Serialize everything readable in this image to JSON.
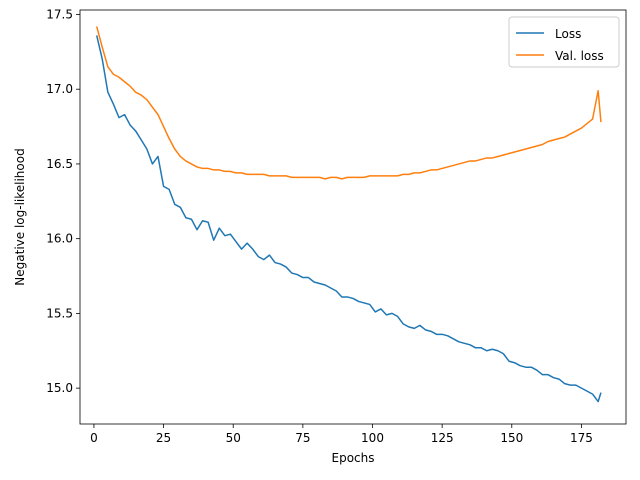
{
  "chart_data": {
    "type": "line",
    "xlabel": "Epochs",
    "ylabel": "Negative log-likelihood",
    "xlim": [
      -5,
      191
    ],
    "ylim": [
      14.76,
      17.53
    ],
    "x_ticks": [
      0,
      25,
      50,
      75,
      100,
      125,
      150,
      175
    ],
    "y_ticks": [
      15.0,
      15.5,
      16.0,
      16.5,
      17.0,
      17.5
    ],
    "x_tick_labels": [
      "0",
      "25",
      "50",
      "75",
      "100",
      "125",
      "150",
      "175"
    ],
    "y_tick_labels": [
      "15.0",
      "15.5",
      "16.0",
      "16.5",
      "17.0",
      "17.5"
    ],
    "grid": false,
    "legend": "top-right",
    "series": [
      {
        "name": "Loss",
        "color": "#1f77b4",
        "x": [
          1,
          3,
          5,
          7,
          9,
          11,
          13,
          15,
          17,
          19,
          21,
          23,
          25,
          27,
          29,
          31,
          33,
          35,
          37,
          39,
          41,
          43,
          45,
          47,
          49,
          51,
          53,
          55,
          57,
          59,
          61,
          63,
          65,
          67,
          69,
          71,
          73,
          75,
          77,
          79,
          81,
          83,
          85,
          87,
          89,
          91,
          93,
          95,
          97,
          99,
          101,
          103,
          105,
          107,
          109,
          111,
          113,
          115,
          117,
          119,
          121,
          123,
          125,
          127,
          129,
          131,
          133,
          135,
          137,
          139,
          141,
          143,
          145,
          147,
          149,
          151,
          153,
          155,
          157,
          159,
          161,
          163,
          165,
          167,
          169,
          171,
          173,
          175,
          177,
          179,
          181,
          182
        ],
        "values": [
          17.36,
          17.2,
          16.98,
          16.9,
          16.81,
          16.83,
          16.76,
          16.72,
          16.66,
          16.6,
          16.5,
          16.55,
          16.35,
          16.33,
          16.23,
          16.21,
          16.14,
          16.13,
          16.06,
          16.12,
          16.11,
          15.99,
          16.07,
          16.02,
          16.03,
          15.98,
          15.93,
          15.97,
          15.93,
          15.88,
          15.86,
          15.89,
          15.84,
          15.83,
          15.81,
          15.77,
          15.76,
          15.74,
          15.74,
          15.71,
          15.7,
          15.69,
          15.67,
          15.65,
          15.61,
          15.61,
          15.6,
          15.58,
          15.57,
          15.56,
          15.51,
          15.53,
          15.49,
          15.5,
          15.48,
          15.43,
          15.41,
          15.4,
          15.42,
          15.39,
          15.38,
          15.36,
          15.36,
          15.35,
          15.33,
          15.31,
          15.3,
          15.29,
          15.27,
          15.27,
          15.25,
          15.26,
          15.25,
          15.23,
          15.18,
          15.17,
          15.15,
          15.14,
          15.14,
          15.12,
          15.09,
          15.09,
          15.07,
          15.06,
          15.03,
          15.02,
          15.02,
          15.0,
          14.98,
          14.96,
          14.91,
          14.97
        ]
      },
      {
        "name": "Val. loss",
        "color": "#ff7f0e",
        "x": [
          1,
          3,
          5,
          7,
          9,
          11,
          13,
          15,
          17,
          19,
          21,
          23,
          25,
          27,
          29,
          31,
          33,
          35,
          37,
          39,
          41,
          43,
          45,
          47,
          49,
          51,
          53,
          55,
          57,
          59,
          61,
          63,
          65,
          67,
          69,
          71,
          73,
          75,
          77,
          79,
          81,
          83,
          85,
          87,
          89,
          91,
          93,
          95,
          97,
          99,
          101,
          103,
          105,
          107,
          109,
          111,
          113,
          115,
          117,
          119,
          121,
          123,
          125,
          127,
          129,
          131,
          133,
          135,
          137,
          139,
          141,
          143,
          145,
          147,
          149,
          151,
          153,
          155,
          157,
          159,
          161,
          163,
          165,
          167,
          169,
          171,
          173,
          175,
          177,
          179,
          181,
          182
        ],
        "values": [
          17.42,
          17.28,
          17.15,
          17.1,
          17.08,
          17.05,
          17.02,
          16.98,
          16.96,
          16.93,
          16.88,
          16.83,
          16.75,
          16.67,
          16.6,
          16.55,
          16.52,
          16.5,
          16.48,
          16.47,
          16.47,
          16.46,
          16.46,
          16.45,
          16.45,
          16.44,
          16.44,
          16.43,
          16.43,
          16.43,
          16.43,
          16.42,
          16.42,
          16.42,
          16.42,
          16.41,
          16.41,
          16.41,
          16.41,
          16.41,
          16.41,
          16.4,
          16.41,
          16.41,
          16.4,
          16.41,
          16.41,
          16.41,
          16.41,
          16.42,
          16.42,
          16.42,
          16.42,
          16.42,
          16.42,
          16.43,
          16.43,
          16.44,
          16.44,
          16.45,
          16.46,
          16.46,
          16.47,
          16.48,
          16.49,
          16.5,
          16.51,
          16.52,
          16.52,
          16.53,
          16.54,
          16.54,
          16.55,
          16.56,
          16.57,
          16.58,
          16.59,
          16.6,
          16.61,
          16.62,
          16.63,
          16.65,
          16.66,
          16.67,
          16.68,
          16.7,
          16.72,
          16.74,
          16.77,
          16.8,
          16.99,
          16.78
        ]
      }
    ]
  }
}
